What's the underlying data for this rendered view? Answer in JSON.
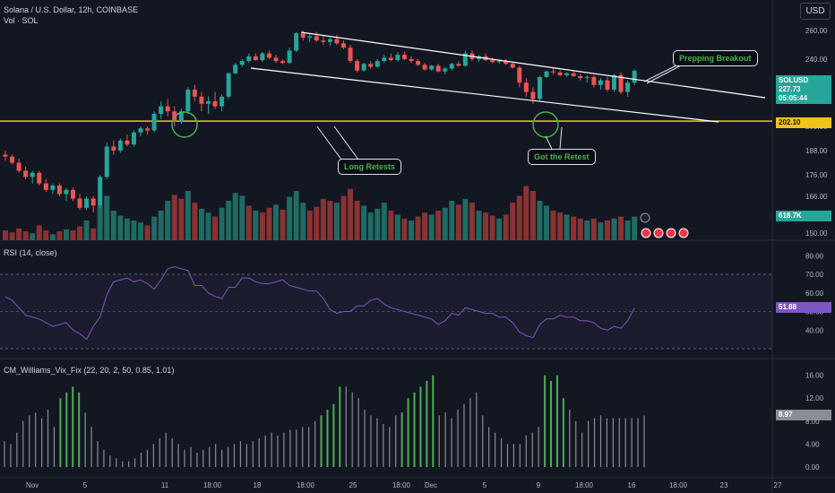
{
  "header": {
    "title": "Solana / U.S. Dollar, 12h, COINBASE",
    "volume_label": "Vol · SOL",
    "currency_button": "USD"
  },
  "rsi": {
    "label": "RSI (14, close)",
    "value": "51.88",
    "value_color": "#7e57c2"
  },
  "vix": {
    "label": "CM_Williams_Vix_Fix (22, 20, 2, 50, 0.85, 1.01)",
    "value": "8.97"
  },
  "price_badge": {
    "symbol": "SOLUSD",
    "price": "227.73",
    "countdown": "05:05:44",
    "color": "#26a69a"
  },
  "level_badge": {
    "value": "202.10",
    "color": "#f0c419"
  },
  "volume_badge": {
    "value": "618.7K",
    "color": "#26a69a"
  },
  "annotations": {
    "breakout": "Prepping Breakout",
    "long_retests": "Long Retests",
    "got_retest": "Got the Retest"
  },
  "colors": {
    "up": "#26a69a",
    "down": "#ef5350",
    "vol_up": "#1f6b63",
    "vol_down": "#8a3332",
    "rsi_line": "#7e57c2",
    "vix_green": "#4caf50",
    "vix_gray": "#8a8d96",
    "level": "#f0c419",
    "channel": "#ffffff",
    "circle": "#4caf50"
  },
  "chart_data": [
    {
      "type": "candlestick",
      "title": "Solana / U.S. Dollar, 12h, COINBASE",
      "y_ticks": [
        260,
        240,
        220,
        210,
        200,
        188,
        176,
        166,
        150
      ],
      "y_tick_labels": [
        "260.00",
        "240.00",
        "220.00",
        "210.00",
        "200.00",
        "188.00",
        "176.00",
        "166.00",
        "150.00"
      ],
      "x_ticks": [
        "Nov",
        "5",
        "11",
        "18:00",
        "18",
        "18:00",
        "25",
        "18:00",
        "Dec",
        "5",
        "9",
        "18:00",
        "16",
        "18:00",
        "23",
        "27"
      ],
      "horizontal_level": 202.1,
      "channel_upper": [
        [
          0,
          261
        ],
        [
          65,
          226
        ]
      ],
      "channel_lower": [
        [
          20,
          235
        ],
        [
          60,
          202.5
        ]
      ],
      "candles_ohlc": [
        [
          186,
          188,
          183,
          185
        ],
        [
          185,
          186,
          181,
          182
        ],
        [
          182,
          184,
          177,
          178
        ],
        [
          178,
          180,
          174,
          175
        ],
        [
          175,
          178,
          172,
          177
        ],
        [
          177,
          178,
          171,
          172
        ],
        [
          172,
          174,
          168,
          169
        ],
        [
          169,
          172,
          167,
          171
        ],
        [
          171,
          172,
          166,
          167
        ],
        [
          167,
          170,
          164,
          169
        ],
        [
          169,
          170,
          164,
          165
        ],
        [
          165,
          167,
          160,
          161
        ],
        [
          161,
          166,
          160,
          165
        ],
        [
          165,
          166,
          159,
          162
        ],
        [
          162,
          176,
          161,
          175
        ],
        [
          175,
          192,
          174,
          190
        ],
        [
          190,
          193,
          186,
          188
        ],
        [
          188,
          194,
          187,
          193
        ],
        [
          193,
          196,
          190,
          191
        ],
        [
          191,
          198,
          190,
          197
        ],
        [
          197,
          200,
          195,
          199
        ],
        [
          199,
          200,
          196,
          198
        ],
        [
          198,
          206,
          197,
          205
        ],
        [
          205,
          210,
          203,
          208
        ],
        [
          208,
          211,
          204,
          206
        ],
        [
          206,
          208,
          200,
          202
        ],
        [
          202,
          207,
          201,
          206
        ],
        [
          206,
          216,
          205,
          215
        ],
        [
          215,
          217,
          210,
          212
        ],
        [
          212,
          214,
          206,
          209
        ],
        [
          209,
          212,
          205,
          210
        ],
        [
          210,
          214,
          207,
          208
        ],
        [
          208,
          213,
          206,
          212
        ],
        [
          212,
          226,
          211,
          225
        ],
        [
          225,
          236,
          224,
          234
        ],
        [
          234,
          240,
          232,
          238
        ],
        [
          238,
          244,
          236,
          242
        ],
        [
          242,
          244,
          238,
          239
        ],
        [
          239,
          245,
          237,
          244
        ],
        [
          244,
          246,
          240,
          241
        ],
        [
          241,
          243,
          236,
          238
        ],
        [
          238,
          240,
          235,
          236
        ],
        [
          236,
          248,
          235,
          246
        ],
        [
          246,
          259,
          245,
          258
        ],
        [
          258,
          260,
          253,
          255
        ],
        [
          255,
          258,
          252,
          256
        ],
        [
          256,
          259,
          252,
          253
        ],
        [
          253,
          256,
          250,
          252
        ],
        [
          252,
          255,
          249,
          254
        ],
        [
          254,
          257,
          250,
          251
        ],
        [
          251,
          253,
          247,
          248
        ],
        [
          248,
          250,
          236,
          238
        ],
        [
          238,
          240,
          226,
          228
        ],
        [
          228,
          236,
          227,
          235
        ],
        [
          235,
          238,
          230,
          232
        ],
        [
          232,
          240,
          231,
          238
        ],
        [
          238,
          243,
          236,
          241
        ],
        [
          241,
          244,
          238,
          239
        ],
        [
          239,
          245,
          237,
          243
        ],
        [
          243,
          245,
          239,
          240
        ],
        [
          240,
          242,
          236,
          238
        ],
        [
          238,
          240,
          233,
          234
        ],
        [
          234,
          236,
          228,
          229
        ],
        [
          229,
          234,
          228,
          233
        ],
        [
          233,
          235,
          226,
          227
        ],
        [
          227,
          232,
          224,
          230
        ],
        [
          230,
          236,
          228,
          235
        ],
        [
          235,
          238,
          232,
          233
        ],
        [
          233,
          246,
          232,
          244
        ],
        [
          244,
          246,
          238,
          240
        ],
        [
          240,
          243,
          237,
          242
        ],
        [
          242,
          244,
          238,
          239
        ],
        [
          239,
          241,
          236,
          237
        ],
        [
          237,
          240,
          235,
          238
        ],
        [
          238,
          240,
          234,
          235
        ],
        [
          235,
          237,
          230,
          231
        ],
        [
          231,
          233,
          216,
          218
        ],
        [
          218,
          220,
          212,
          214
        ],
        [
          214,
          216,
          209,
          211
        ],
        [
          211,
          222,
          210,
          221
        ],
        [
          221,
          228,
          220,
          227
        ],
        [
          227,
          230,
          224,
          226
        ],
        [
          226,
          228,
          222,
          223
        ],
        [
          223,
          226,
          221,
          225
        ],
        [
          225,
          227,
          221,
          222
        ],
        [
          222,
          224,
          219,
          220
        ],
        [
          220,
          223,
          218,
          221
        ],
        [
          221,
          223,
          216,
          217
        ],
        [
          217,
          220,
          215,
          219
        ],
        [
          219,
          221,
          214,
          215
        ],
        [
          215,
          224,
          214,
          223
        ],
        [
          223,
          226,
          213,
          214
        ],
        [
          214,
          219,
          212,
          218
        ],
        [
          218,
          229,
          217,
          227.73
        ]
      ],
      "volume": [
        [
          0.1,
          0
        ],
        [
          0.08,
          0
        ],
        [
          0.12,
          0
        ],
        [
          0.09,
          0
        ],
        [
          0.07,
          1
        ],
        [
          0.15,
          0
        ],
        [
          0.1,
          0
        ],
        [
          0.06,
          1
        ],
        [
          0.09,
          0
        ],
        [
          0.11,
          1
        ],
        [
          0.1,
          0
        ],
        [
          0.14,
          0
        ],
        [
          0.2,
          1
        ],
        [
          0.12,
          0
        ],
        [
          0.35,
          1
        ],
        [
          0.45,
          1
        ],
        [
          0.3,
          1
        ],
        [
          0.25,
          1
        ],
        [
          0.22,
          1
        ],
        [
          0.2,
          1
        ],
        [
          0.18,
          1
        ],
        [
          0.15,
          0
        ],
        [
          0.24,
          1
        ],
        [
          0.3,
          1
        ],
        [
          0.4,
          1
        ],
        [
          0.46,
          0
        ],
        [
          0.42,
          0
        ],
        [
          0.5,
          1
        ],
        [
          0.38,
          0
        ],
        [
          0.32,
          1
        ],
        [
          0.28,
          1
        ],
        [
          0.24,
          0
        ],
        [
          0.33,
          1
        ],
        [
          0.4,
          1
        ],
        [
          0.48,
          1
        ],
        [
          0.45,
          1
        ],
        [
          0.35,
          0
        ],
        [
          0.3,
          1
        ],
        [
          0.28,
          0
        ],
        [
          0.33,
          0
        ],
        [
          0.36,
          1
        ],
        [
          0.31,
          0
        ],
        [
          0.44,
          1
        ],
        [
          0.5,
          1
        ],
        [
          0.38,
          1
        ],
        [
          0.3,
          0
        ],
        [
          0.34,
          0
        ],
        [
          0.42,
          0
        ],
        [
          0.4,
          0
        ],
        [
          0.38,
          1
        ],
        [
          0.45,
          0
        ],
        [
          0.52,
          0
        ],
        [
          0.4,
          0
        ],
        [
          0.35,
          1
        ],
        [
          0.28,
          1
        ],
        [
          0.32,
          1
        ],
        [
          0.38,
          1
        ],
        [
          0.3,
          0
        ],
        [
          0.26,
          1
        ],
        [
          0.22,
          0
        ],
        [
          0.2,
          1
        ],
        [
          0.24,
          0
        ],
        [
          0.28,
          0
        ],
        [
          0.26,
          1
        ],
        [
          0.3,
          0
        ],
        [
          0.33,
          1
        ],
        [
          0.4,
          1
        ],
        [
          0.36,
          0
        ],
        [
          0.42,
          1
        ],
        [
          0.38,
          0
        ],
        [
          0.3,
          1
        ],
        [
          0.28,
          0
        ],
        [
          0.25,
          0
        ],
        [
          0.22,
          1
        ],
        [
          0.26,
          0
        ],
        [
          0.38,
          0
        ],
        [
          0.45,
          0
        ],
        [
          0.55,
          0
        ],
        [
          0.5,
          0
        ],
        [
          0.4,
          1
        ],
        [
          0.35,
          1
        ],
        [
          0.3,
          0
        ],
        [
          0.28,
          0
        ],
        [
          0.26,
          1
        ],
        [
          0.24,
          0
        ],
        [
          0.22,
          0
        ],
        [
          0.2,
          1
        ],
        [
          0.22,
          0
        ],
        [
          0.18,
          1
        ],
        [
          0.2,
          0
        ],
        [
          0.22,
          1
        ],
        [
          0.24,
          0
        ],
        [
          0.2,
          1
        ],
        [
          0.24,
          1
        ]
      ]
    },
    {
      "type": "line",
      "title": "RSI (14, close)",
      "y_ticks": [
        80,
        70,
        60,
        50,
        40
      ],
      "y_tick_labels": [
        "80.00",
        "70.00",
        "60.00",
        "50.00",
        "40.00"
      ],
      "band": [
        30,
        70
      ],
      "values": [
        58,
        56,
        52,
        48,
        47,
        46,
        44,
        42,
        43,
        44,
        40,
        38,
        35,
        42,
        47,
        59,
        66,
        67,
        68,
        66,
        67,
        65,
        62,
        67,
        73,
        74,
        73,
        72,
        64,
        64,
        60,
        58,
        57,
        63,
        63,
        68,
        68,
        66,
        65,
        65,
        66,
        67,
        64,
        63,
        62,
        61,
        61,
        57,
        51,
        49,
        50,
        50,
        53,
        53,
        56,
        57,
        54,
        52,
        51,
        50,
        49,
        48,
        47,
        46,
        43,
        45,
        49,
        48,
        52,
        51,
        50,
        49,
        49,
        47,
        47,
        44,
        39,
        37,
        36,
        43,
        46,
        46,
        48,
        47,
        47,
        45,
        45,
        44,
        41,
        40,
        42,
        41,
        45,
        51.88
      ]
    },
    {
      "type": "bar",
      "title": "CM_Williams_Vix_Fix (22, 20, 2, 50, 0.85, 1.01)",
      "y_ticks": [
        16,
        12,
        8,
        4,
        0
      ],
      "y_tick_labels": [
        "16.00",
        "12.00",
        "8.00",
        "4.00",
        "0.00"
      ],
      "values": [
        4.5,
        4,
        6,
        8,
        9,
        9.5,
        8.5,
        10,
        7,
        12,
        13,
        14,
        13,
        9.5,
        7,
        4.5,
        3,
        2,
        1.5,
        1,
        1,
        1.5,
        2.5,
        3,
        4,
        5,
        6,
        5,
        4,
        3,
        3.5,
        2.5,
        3,
        3.5,
        4,
        3,
        3.5,
        4,
        4.5,
        4,
        4.5,
        5,
        5.5,
        6,
        5.5,
        6,
        6.5,
        6.5,
        7,
        7,
        8,
        9,
        10,
        11,
        14,
        14,
        13,
        12,
        10,
        9,
        8.5,
        7.5,
        7,
        9,
        9.5,
        12,
        13,
        14,
        15,
        16,
        9,
        9.5,
        8.5,
        10,
        11,
        12,
        13,
        9,
        7,
        6,
        5,
        4,
        4,
        4,
        5.5,
        6,
        7,
        16,
        15,
        16,
        12,
        10,
        8,
        6,
        8,
        8.5,
        9,
        8.5,
        8.5,
        8.5,
        8.5,
        8.5,
        8.5,
        8.97
      ],
      "highlight": [
        9,
        10,
        11,
        12,
        51,
        52,
        53,
        54,
        64,
        65,
        66,
        67,
        68,
        69,
        87,
        88,
        89,
        90
      ]
    }
  ]
}
